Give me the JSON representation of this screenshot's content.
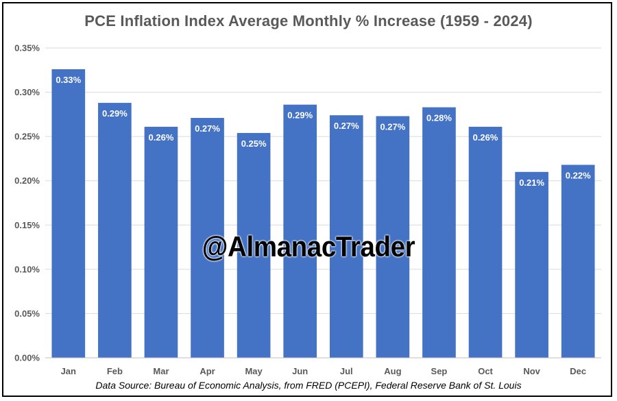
{
  "colors": {
    "bar": "#4472C4",
    "grid": "#D9D9D9",
    "axis": "#BFBFBF",
    "text": "#595959"
  },
  "watermark": "@AlmanacTrader",
  "source": "Data Source: Bureau of Economic Analysis, from FRED (PCEPI), Federal Reserve Bank of St. Louis",
  "chart_data": {
    "type": "bar",
    "title": "PCE Inflation Index Average Monthly % Increase (1959 - 2024)",
    "xlabel": "",
    "ylabel": "",
    "categories": [
      "Jan",
      "Feb",
      "Mar",
      "Apr",
      "May",
      "Jun",
      "Jul",
      "Aug",
      "Sep",
      "Oct",
      "Nov",
      "Dec"
    ],
    "values": [
      0.326,
      0.288,
      0.261,
      0.271,
      0.254,
      0.286,
      0.274,
      0.273,
      0.283,
      0.261,
      0.21,
      0.218
    ],
    "data_labels": [
      "0.33%",
      "0.29%",
      "0.26%",
      "0.27%",
      "0.25%",
      "0.29%",
      "0.27%",
      "0.27%",
      "0.28%",
      "0.26%",
      "0.21%",
      "0.22%"
    ],
    "ylim": [
      0,
      0.35
    ],
    "yticks": [
      0,
      0.05,
      0.1,
      0.15,
      0.2,
      0.25,
      0.3,
      0.35
    ],
    "ytick_labels": [
      "0.00%",
      "0.05%",
      "0.10%",
      "0.15%",
      "0.20%",
      "0.25%",
      "0.30%",
      "0.35%"
    ],
    "grid": true,
    "legend": "none"
  }
}
